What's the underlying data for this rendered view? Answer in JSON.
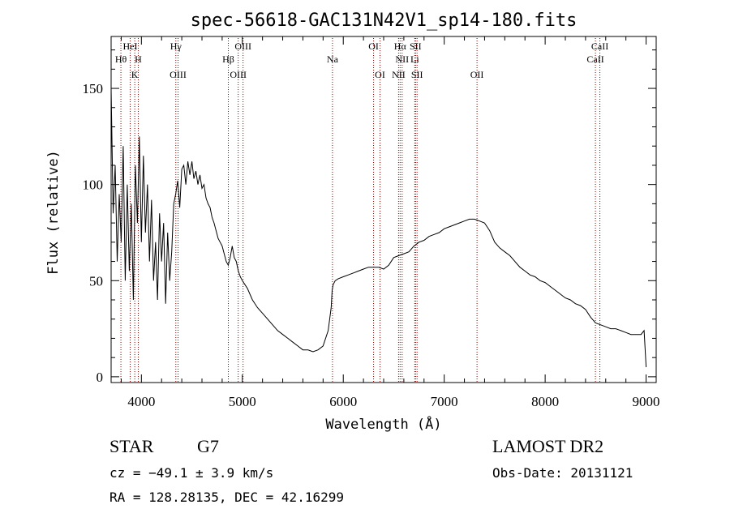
{
  "chart_data": {
    "type": "line",
    "title": "spec-56618-GAC131N42V1_sp14-180.fits",
    "xlabel": "Wavelength (Å)",
    "ylabel": "Flux (relative)",
    "xlim": [
      3700,
      9100
    ],
    "ylim": [
      -3,
      177
    ],
    "xticks": [
      "4000",
      "5000",
      "6000",
      "7000",
      "8000",
      "9000"
    ],
    "yticks": [
      "0",
      "50",
      "100",
      "150"
    ],
    "series": [
      {
        "x": [
          3700,
          3720,
          3740,
          3760,
          3780,
          3800,
          3820,
          3840,
          3860,
          3880,
          3900,
          3920,
          3940,
          3960,
          3980,
          4000,
          4020,
          4040,
          4060,
          4080,
          4100,
          4120,
          4140,
          4160,
          4180,
          4200,
          4220,
          4240,
          4260,
          4280,
          4300,
          4320,
          4340,
          4360,
          4380,
          4400,
          4420,
          4440,
          4460,
          4480,
          4500,
          4520,
          4540,
          4560,
          4580,
          4600,
          4620,
          4640,
          4660,
          4680,
          4700,
          4720,
          4740,
          4760,
          4780,
          4800,
          4820,
          4840,
          4860,
          4880,
          4900,
          4920,
          4940,
          4960,
          4980,
          5000,
          5050,
          5100,
          5150,
          5200,
          5250,
          5300,
          5350,
          5400,
          5450,
          5500,
          5550,
          5600,
          5650,
          5700,
          5750,
          5800,
          5850,
          5880,
          5890,
          5900,
          5920,
          5950,
          6000,
          6050,
          6100,
          6150,
          6200,
          6250,
          6300,
          6350,
          6400,
          6450,
          6500,
          6550,
          6600,
          6650,
          6700,
          6750,
          6800,
          6850,
          6900,
          6950,
          7000,
          7050,
          7100,
          7150,
          7200,
          7250,
          7300,
          7350,
          7400,
          7450,
          7500,
          7550,
          7600,
          7650,
          7700,
          7750,
          7800,
          7850,
          7900,
          7950,
          8000,
          8050,
          8100,
          8150,
          8200,
          8250,
          8300,
          8350,
          8400,
          8450,
          8500,
          8550,
          8600,
          8650,
          8700,
          8750,
          8800,
          8850,
          8900,
          8950,
          8980,
          9000
        ],
        "y": [
          150,
          85,
          110,
          60,
          95,
          70,
          120,
          50,
          100,
          55,
          90,
          40,
          110,
          80,
          125,
          70,
          115,
          75,
          100,
          60,
          92,
          50,
          70,
          40,
          85,
          60,
          80,
          38,
          75,
          50,
          65,
          90,
          95,
          102,
          88,
          108,
          110,
          100,
          112,
          105,
          112,
          103,
          107,
          100,
          105,
          98,
          100,
          93,
          90,
          88,
          83,
          80,
          76,
          72,
          70,
          68,
          64,
          60,
          58,
          62,
          68,
          62,
          60,
          55,
          52,
          50,
          46,
          40,
          36,
          33,
          30,
          27,
          24,
          22,
          20,
          18,
          16,
          14,
          14,
          13,
          14,
          16,
          24,
          36,
          45,
          48,
          50,
          51,
          52,
          53,
          54,
          55,
          56,
          57,
          57,
          57,
          56,
          58,
          62,
          63,
          64,
          65,
          68,
          70,
          71,
          73,
          74,
          75,
          77,
          78,
          79,
          80,
          81,
          82,
          82,
          81,
          80,
          76,
          70,
          67,
          65,
          63,
          60,
          57,
          55,
          53,
          52,
          50,
          49,
          47,
          45,
          43,
          41,
          40,
          38,
          37,
          35,
          31,
          28,
          27,
          26,
          25,
          25,
          24,
          23,
          22,
          22,
          22,
          24,
          5
        ]
      }
    ],
    "lines": [
      {
        "name": "Hθ",
        "x": 3797,
        "row": 2
      },
      {
        "name": "HeI",
        "x": 3889,
        "row": 1
      },
      {
        "name": "K",
        "x": 3934,
        "row": 3
      },
      {
        "name": "H",
        "x": 3969,
        "row": 2
      },
      {
        "name": "Hγ",
        "x": 4341,
        "row": 1
      },
      {
        "name": "OIII",
        "x": 4363,
        "row": 3
      },
      {
        "name": "Hβ",
        "x": 4861,
        "row": 2
      },
      {
        "name": "OIII",
        "x": 4959,
        "row": 3
      },
      {
        "name": "OIII",
        "x": 5007,
        "row": 1
      },
      {
        "name": "Na",
        "x": 5893,
        "row": 2
      },
      {
        "name": "OI",
        "x": 6300,
        "row": 1
      },
      {
        "name": "OI",
        "x": 6364,
        "row": 3
      },
      {
        "name": "NII",
        "x": 6548,
        "row": 3
      },
      {
        "name": "Hα",
        "x": 6563,
        "row": 1
      },
      {
        "name": "NII",
        "x": 6583,
        "row": 2
      },
      {
        "name": "Li",
        "x": 6708,
        "row": 2
      },
      {
        "name": "SII",
        "x": 6716,
        "row": 1
      },
      {
        "name": "SII",
        "x": 6731,
        "row": 3
      },
      {
        "name": "OII",
        "x": 7325,
        "row": 3
      },
      {
        "name": "CaII",
        "x": 8498,
        "row": 2
      },
      {
        "name": "CaII",
        "x": 8542,
        "row": 1
      }
    ],
    "line_color": "#8b0000",
    "grid": false
  },
  "info": {
    "object_type": "STAR",
    "subclass": "G7",
    "redshift": "cz = −49.1 ± 3.9 km/s",
    "coords": "RA = 128.28135, DEC =  42.16299",
    "survey": "LAMOST DR2",
    "obs_date": "Obs-Date: 20131121"
  }
}
